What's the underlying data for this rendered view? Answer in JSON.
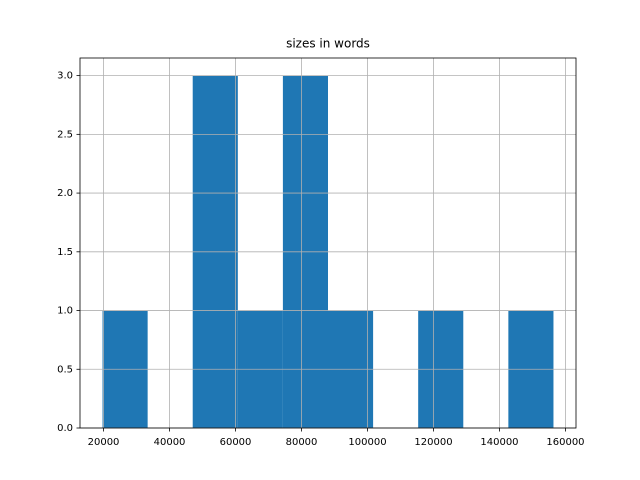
{
  "chart_data": {
    "type": "histogram",
    "title": "sizes in words",
    "bins": [
      19700,
      33370,
      47030,
      60700,
      74360,
      88030,
      101700,
      115360,
      129030,
      142690,
      156360
    ],
    "values": [
      1,
      0,
      3,
      1,
      3,
      1,
      0,
      1,
      0,
      1
    ],
    "color": "#1f77b4",
    "xlim": [
      12870,
      163190
    ],
    "xticks": [
      20000,
      40000,
      60000,
      80000,
      100000,
      120000,
      140000,
      160000
    ],
    "ylim": [
      0,
      3.15
    ],
    "yticks": [
      {
        "value": 0,
        "label": "0.0"
      },
      {
        "value": 0.5,
        "label": "0.5"
      },
      {
        "value": 1,
        "label": "1.0"
      },
      {
        "value": 1.5,
        "label": "1.5"
      },
      {
        "value": 2,
        "label": "2.0"
      },
      {
        "value": 2.5,
        "label": "2.5"
      },
      {
        "value": 3,
        "label": "3.0"
      }
    ],
    "grid": true
  }
}
